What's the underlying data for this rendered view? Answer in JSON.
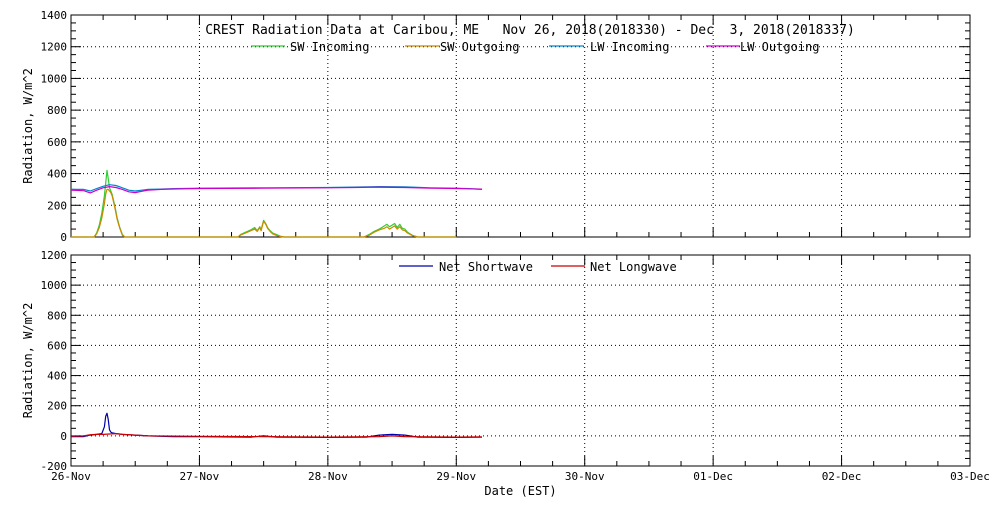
{
  "chart_data": [
    {
      "type": "line",
      "title": "CREST Radiation Data at Caribou, ME   Nov 26, 2018(2018330) - Dec  3, 2018(2018337)",
      "xlabel": "",
      "ylabel": "Radiation, W/m^2",
      "x_ticks": [
        "26-Nov",
        "27-Nov",
        "28-Nov",
        "29-Nov",
        "30-Nov",
        "01-Dec",
        "02-Dec",
        "03-Dec"
      ],
      "x_range_days": [
        0,
        7
      ],
      "ylim": [
        0,
        1400
      ],
      "y_ticks": [
        0,
        200,
        400,
        600,
        800,
        1000,
        1200,
        1400
      ],
      "grid": true,
      "legend_position": "top-center",
      "series": [
        {
          "name": "SW Incoming",
          "color": "#33cc33",
          "x": [
            0.0,
            0.18,
            0.2,
            0.22,
            0.24,
            0.26,
            0.27,
            0.28,
            0.29,
            0.3,
            0.31,
            0.32,
            0.34,
            0.36,
            0.38,
            0.4,
            0.42,
            0.44,
            1.3,
            1.32,
            1.36,
            1.4,
            1.43,
            1.45,
            1.47,
            1.48,
            1.5,
            1.52,
            1.53,
            1.55,
            1.57,
            1.6,
            1.63,
            1.66,
            1.7,
            2.28,
            2.32,
            2.36,
            2.4,
            2.42,
            2.44,
            2.46,
            2.48,
            2.5,
            2.52,
            2.54,
            2.56,
            2.58,
            2.6,
            2.62,
            2.66,
            2.7,
            3.0
          ],
          "y": [
            0,
            0,
            25,
            75,
            150,
            260,
            340,
            420,
            370,
            310,
            290,
            270,
            200,
            120,
            60,
            15,
            0,
            0,
            0,
            15,
            30,
            45,
            60,
            40,
            65,
            45,
            105,
            80,
            60,
            40,
            25,
            15,
            5,
            0,
            0,
            0,
            15,
            35,
            50,
            60,
            70,
            80,
            65,
            75,
            85,
            60,
            80,
            55,
            50,
            30,
            10,
            0,
            0
          ]
        },
        {
          "name": "SW Outgoing",
          "color": "#cc8800",
          "x": [
            0.0,
            0.18,
            0.2,
            0.22,
            0.24,
            0.26,
            0.27,
            0.28,
            0.29,
            0.3,
            0.31,
            0.32,
            0.34,
            0.36,
            0.38,
            0.4,
            0.42,
            0.44,
            1.3,
            1.32,
            1.36,
            1.4,
            1.43,
            1.45,
            1.47,
            1.48,
            1.5,
            1.52,
            1.53,
            1.55,
            1.57,
            1.6,
            1.63,
            1.66,
            1.7,
            2.28,
            2.32,
            2.36,
            2.4,
            2.42,
            2.44,
            2.46,
            2.48,
            2.5,
            2.52,
            2.54,
            2.56,
            2.58,
            2.6,
            2.62,
            2.66,
            2.7,
            3.0
          ],
          "y": [
            0,
            0,
            20,
            60,
            120,
            210,
            270,
            300,
            300,
            290,
            280,
            260,
            190,
            110,
            55,
            10,
            0,
            0,
            0,
            12,
            25,
            40,
            50,
            35,
            60,
            40,
            100,
            75,
            55,
            35,
            20,
            10,
            3,
            0,
            0,
            0,
            10,
            30,
            45,
            50,
            55,
            65,
            50,
            60,
            70,
            50,
            65,
            45,
            40,
            25,
            8,
            0,
            0
          ]
        },
        {
          "name": "LW Incoming",
          "color": "#0088cc",
          "x": [
            0.0,
            0.1,
            0.15,
            0.2,
            0.25,
            0.3,
            0.35,
            0.4,
            0.45,
            0.5,
            0.55,
            0.6,
            0.7,
            0.8,
            1.0,
            1.5,
            2.0,
            2.2,
            2.4,
            2.6,
            2.8,
            3.0,
            3.1,
            3.2
          ],
          "y": [
            300,
            300,
            290,
            305,
            320,
            330,
            325,
            310,
            295,
            290,
            295,
            300,
            302,
            305,
            308,
            310,
            312,
            315,
            318,
            316,
            310,
            308,
            305,
            300
          ]
        },
        {
          "name": "LW Outgoing",
          "color": "#cc00cc",
          "x": [
            0.0,
            0.1,
            0.15,
            0.2,
            0.25,
            0.3,
            0.35,
            0.4,
            0.45,
            0.5,
            0.55,
            0.6,
            0.7,
            0.8,
            1.0,
            1.5,
            2.0,
            2.2,
            2.4,
            2.6,
            2.8,
            3.0,
            3.1,
            3.2
          ],
          "y": [
            295,
            292,
            278,
            295,
            310,
            318,
            312,
            300,
            285,
            280,
            288,
            296,
            300,
            303,
            306,
            308,
            310,
            312,
            314,
            312,
            308,
            306,
            304,
            302
          ]
        }
      ]
    },
    {
      "type": "line",
      "title": "",
      "xlabel": "Date (EST)",
      "ylabel": "Radiation, W/m^2",
      "x_ticks": [
        "26-Nov",
        "27-Nov",
        "28-Nov",
        "29-Nov",
        "30-Nov",
        "01-Dec",
        "02-Dec",
        "03-Dec"
      ],
      "x_range_days": [
        0,
        7
      ],
      "ylim": [
        -200,
        1200
      ],
      "y_ticks": [
        -200,
        0,
        200,
        400,
        600,
        800,
        1000,
        1200
      ],
      "grid": true,
      "legend_position": "top-center",
      "series": [
        {
          "name": "Net Shortwave",
          "color": "#0000aa",
          "x": [
            0.0,
            0.1,
            0.15,
            0.2,
            0.24,
            0.26,
            0.27,
            0.28,
            0.29,
            0.3,
            0.31,
            0.32,
            0.35,
            0.4,
            0.5,
            0.6,
            0.8,
            1.0,
            1.4,
            1.5,
            1.6,
            2.0,
            2.3,
            2.4,
            2.5,
            2.6,
            2.7,
            3.0,
            3.2
          ],
          "y": [
            -5,
            -5,
            5,
            10,
            15,
            60,
            130,
            150,
            110,
            40,
            25,
            20,
            15,
            10,
            5,
            0,
            -5,
            -5,
            -8,
            0,
            -8,
            -10,
            -8,
            5,
            10,
            5,
            -8,
            -10,
            -8
          ]
        },
        {
          "name": "Net Longwave",
          "color": "#cc0000",
          "x": [
            0.0,
            0.1,
            0.15,
            0.2,
            0.25,
            0.3,
            0.35,
            0.4,
            0.5,
            0.6,
            1.0,
            1.5,
            2.0,
            2.4,
            2.5,
            2.6,
            3.0,
            3.2
          ],
          "y": [
            -2,
            0,
            8,
            10,
            10,
            12,
            15,
            10,
            5,
            0,
            -3,
            -5,
            -8,
            -5,
            0,
            -5,
            -8,
            -6
          ]
        }
      ]
    }
  ]
}
